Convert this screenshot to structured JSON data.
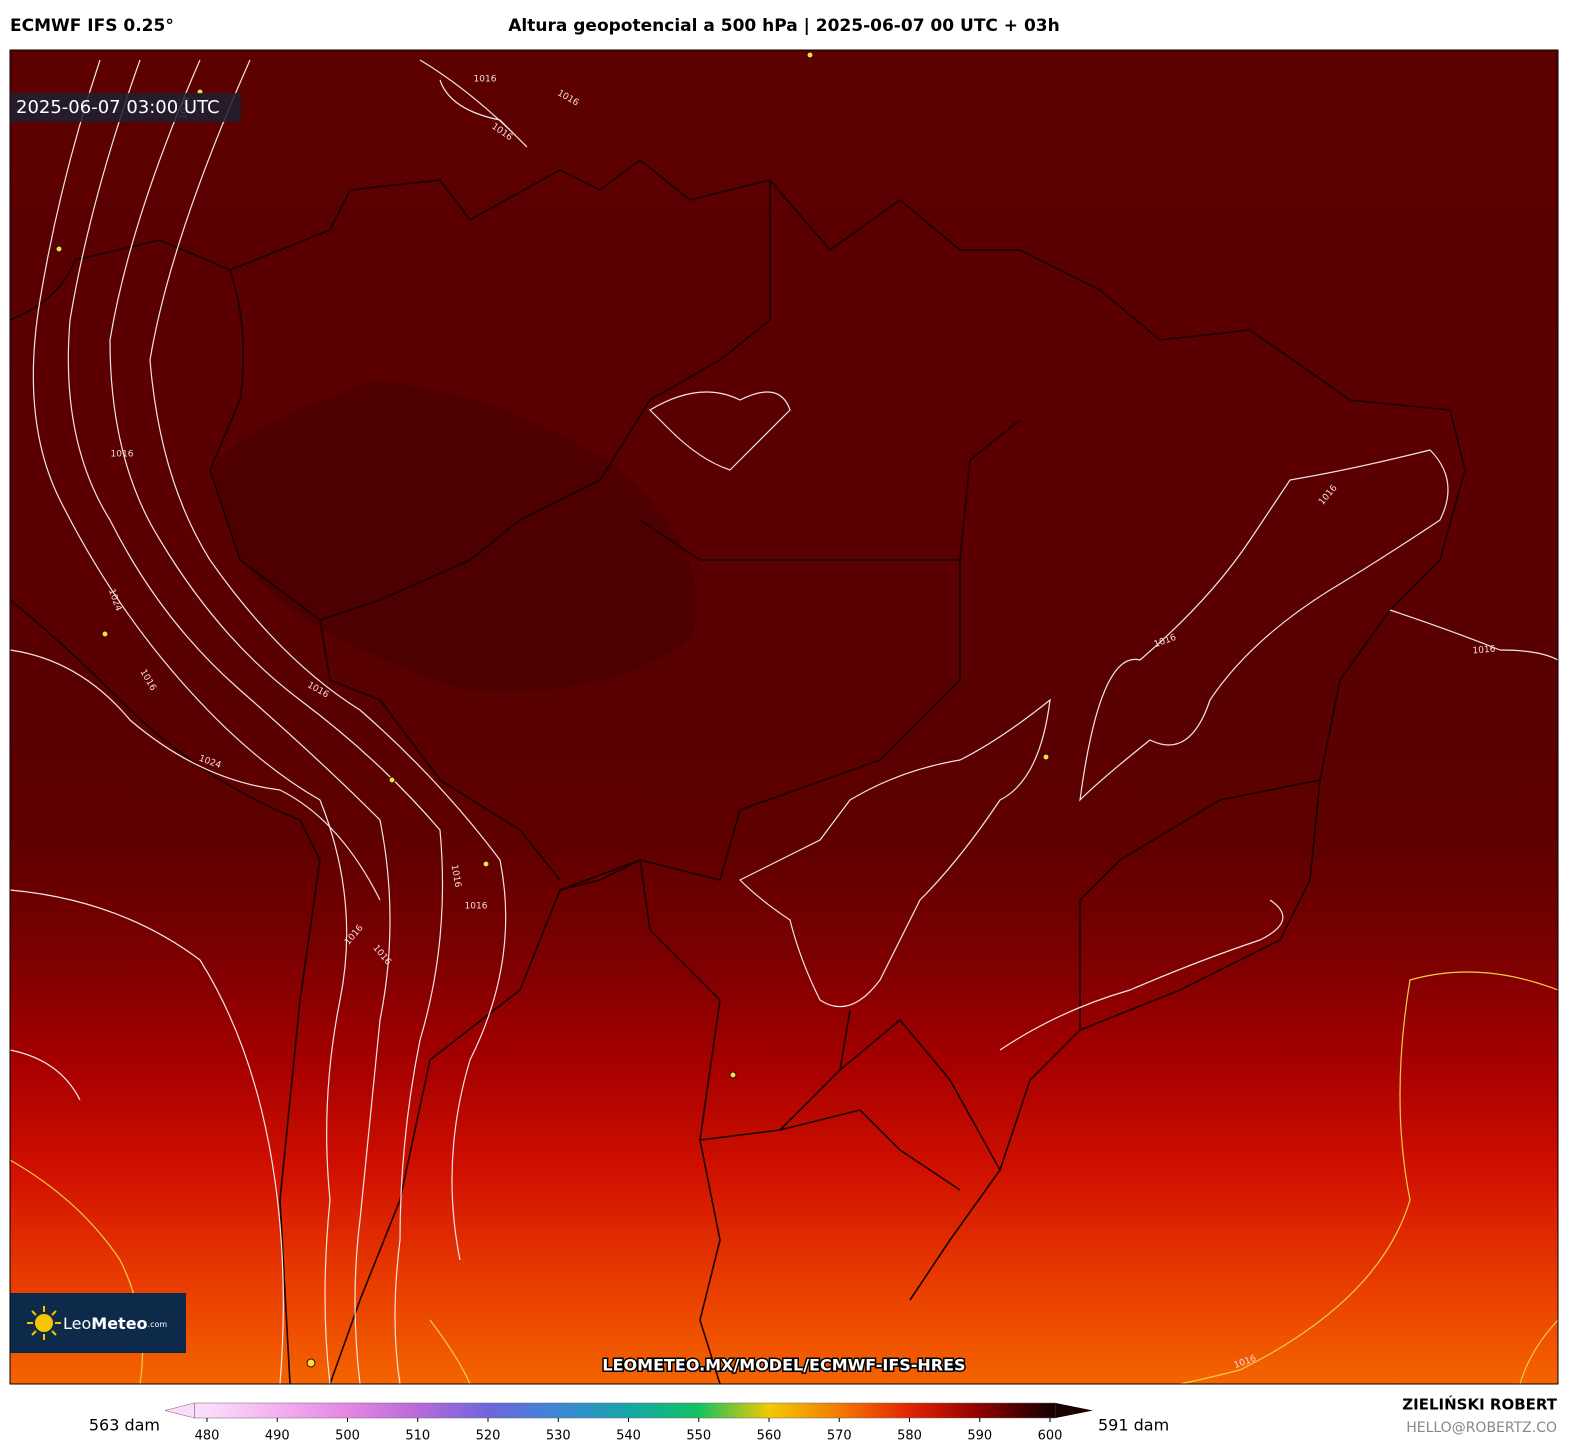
{
  "header": {
    "model": "ECMWF IFS 0.25°",
    "title": "Altura geopotencial a 500 hPa | 2025-06-07 00 UTC + 03h"
  },
  "map": {
    "valid_time": "2025-06-07 03:00 UTC",
    "url": "LEOMETEO.MX/MODEL/ECMWF-IFS-HRES",
    "logo": {
      "name": "Leo",
      "brand": "Meteo",
      "suffix": ".com"
    },
    "contour_labels": [
      "1016",
      "1016",
      "1016",
      "1024",
      "1016",
      "1024",
      "1016",
      "1016",
      "1024",
      "1016",
      "1016",
      "1016",
      "1016",
      "1016",
      "1016",
      "1016",
      "1016"
    ]
  },
  "colorbar": {
    "min_label": "563 dam",
    "max_label": "591 dam",
    "ticks": [
      480,
      490,
      500,
      510,
      520,
      530,
      540,
      550,
      560,
      570,
      580,
      590,
      600
    ],
    "colors": [
      "#fcdcfb",
      "#f3b0f0",
      "#e486e4",
      "#b86ad8",
      "#6f66dc",
      "#3c86d6",
      "#16a6a8",
      "#14c262",
      "#f4c800",
      "#f27a00",
      "#e22400",
      "#8e0000",
      "#1a0000"
    ]
  },
  "credit": {
    "author": "ZIELIŃSKI ROBERT",
    "email": "HELLO@ROBERTZ.CO"
  }
}
